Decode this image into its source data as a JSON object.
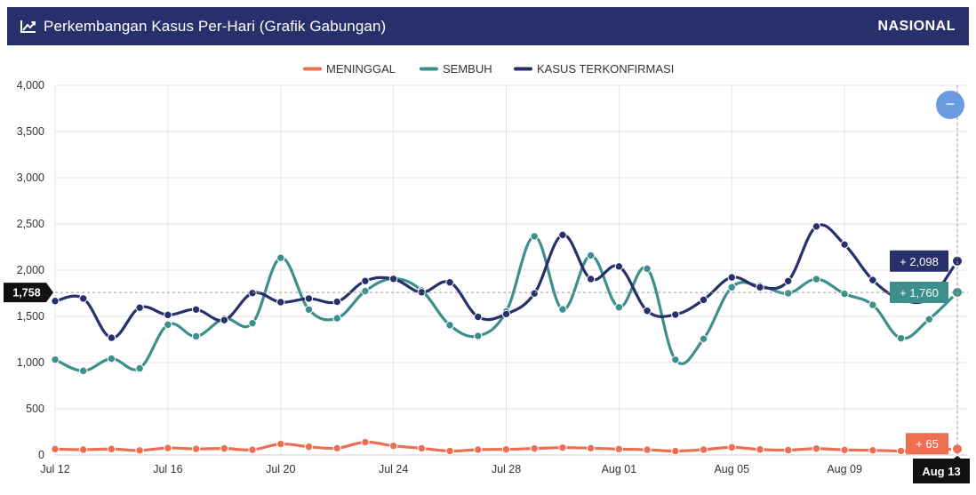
{
  "header": {
    "title": "Perkembangan Kasus Per-Hari (Grafik Gabungan)",
    "region": "NASIONAL",
    "title_icon": "chart-line-icon"
  },
  "chart_data": {
    "type": "line",
    "x": [
      "Jul 12",
      "Jul 13",
      "Jul 14",
      "Jul 15",
      "Jul 16",
      "Jul 17",
      "Jul 18",
      "Jul 19",
      "Jul 20",
      "Jul 21",
      "Jul 22",
      "Jul 23",
      "Jul 24",
      "Jul 25",
      "Jul 26",
      "Jul 27",
      "Jul 28",
      "Jul 29",
      "Jul 30",
      "Jul 31",
      "Aug 01",
      "Aug 02",
      "Aug 03",
      "Aug 04",
      "Aug 05",
      "Aug 06",
      "Aug 07",
      "Aug 08",
      "Aug 09",
      "Aug 10",
      "Aug 11",
      "Aug 12",
      "Aug 13"
    ],
    "xticks": [
      "Jul 12",
      "Jul 16",
      "Jul 20",
      "Jul 24",
      "Jul 28",
      "Aug 01",
      "Aug 05",
      "Aug 09",
      "Aug 13"
    ],
    "ylim": [
      0,
      4000
    ],
    "yticks": [
      "0",
      "500",
      "1,000",
      "1,500",
      "2,000",
      "2,500",
      "3,000",
      "3,500",
      "4,000"
    ],
    "series": [
      {
        "name": "MENINGGAL",
        "color": "#ee6e52",
        "values": [
          64,
          58,
          65,
          50,
          76,
          66,
          71,
          57,
          119,
          89,
          74,
          139,
          99,
          73,
          43,
          58,
          61,
          71,
          80,
          74,
          64,
          57,
          43,
          58,
          83,
          60,
          53,
          70,
          55,
          51,
          44,
          56,
          65
        ]
      },
      {
        "name": "SEMBUH",
        "color": "#3c8f8a",
        "values": [
          1032,
          911,
          1042,
          938,
          1410,
          1284,
          1475,
          1426,
          2133,
          1574,
          1480,
          1773,
          1909,
          1780,
          1405,
          1288,
          1552,
          2366,
          1576,
          2159,
          1599,
          2016,
          1031,
          1257,
          1815,
          1830,
          1750,
          1903,
          1744,
          1624,
          1263,
          1469,
          1760
        ]
      },
      {
        "name": "KASUS TERKONFIRMASI",
        "color": "#27306b",
        "values": [
          1666,
          1693,
          1268,
          1594,
          1516,
          1574,
          1460,
          1752,
          1654,
          1693,
          1658,
          1883,
          1906,
          1761,
          1868,
          1495,
          1525,
          1748,
          2381,
          1904,
          2040,
          1560,
          1519,
          1679,
          1922,
          1815,
          1882,
          2473,
          2277,
          1893,
          1687,
          1693,
          2098
        ]
      }
    ],
    "crosshair": {
      "y_label": "1,758",
      "x_label": "Aug 13"
    },
    "value_labels": [
      {
        "series": "KASUS TERKONFIRMASI",
        "text": "+ 2,098"
      },
      {
        "series": "SEMBUH",
        "text": "+ 1,760"
      },
      {
        "series": "MENINGGAL",
        "text": "+ 65"
      }
    ],
    "zoom_button": "−",
    "grid": true,
    "legend": "top-center"
  }
}
